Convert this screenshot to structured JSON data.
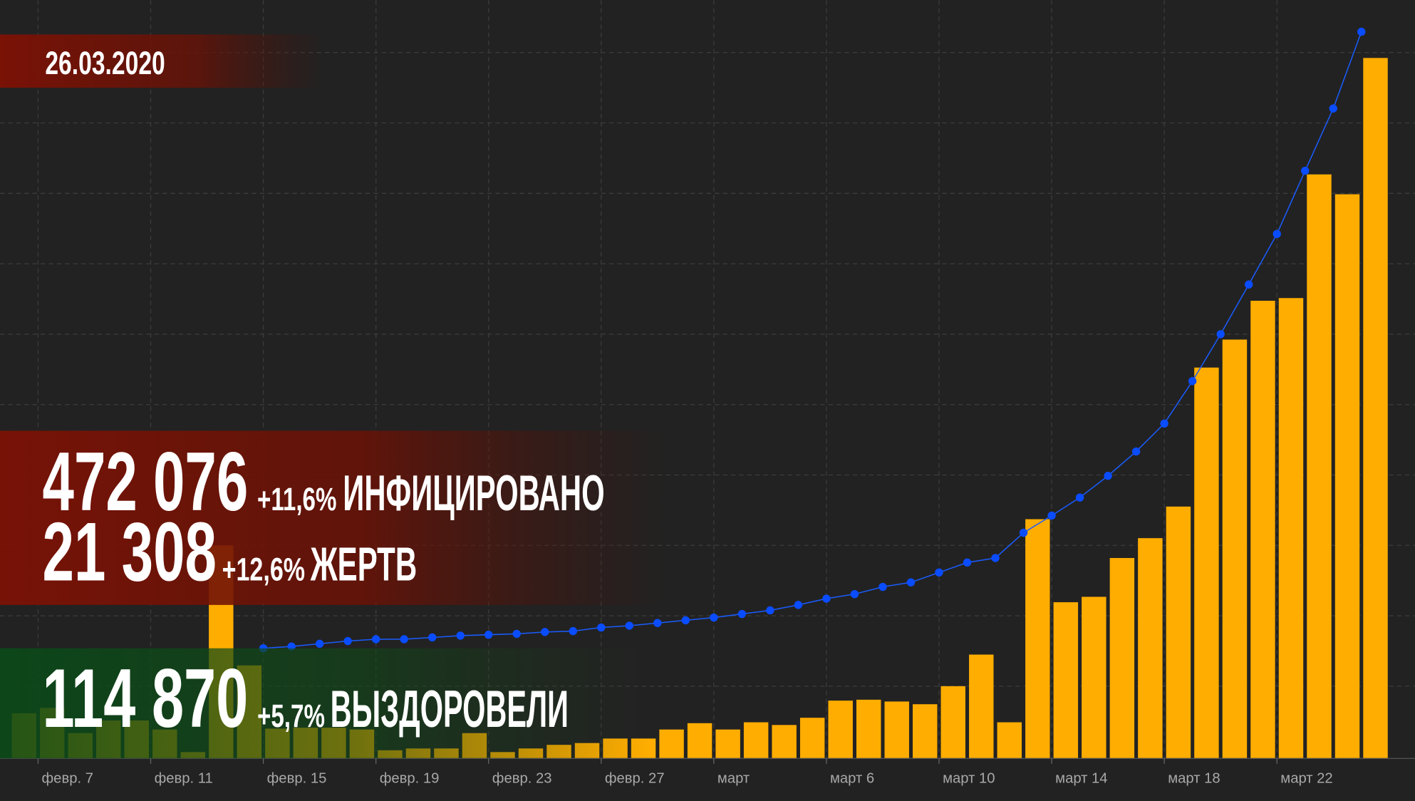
{
  "date": "26.03.2020",
  "stats": [
    {
      "number": "472 076",
      "change": "+11,6%",
      "label": "ИНФИЦИРОВАНО"
    },
    {
      "number": "21 308",
      "change": "+12,6%",
      "label": "ЖЕРТВ"
    },
    {
      "number": "114 870",
      "change": "+5,7%",
      "label": "ВЫЗДОРОВЕЛИ"
    }
  ],
  "chart_data": {
    "type": "bar",
    "categories": [
      null,
      "февр. 7",
      null,
      null,
      null,
      "февр. 11",
      null,
      null,
      null,
      "февр. 15",
      null,
      null,
      null,
      "февр. 19",
      null,
      null,
      null,
      "февр. 23",
      null,
      null,
      null,
      "февр. 27",
      null,
      null,
      null,
      "март",
      null,
      null,
      null,
      "март 6",
      null,
      null,
      null,
      "март 10",
      null,
      null,
      null,
      "март 14",
      null,
      null,
      null,
      "март 18",
      null,
      null,
      null,
      "март 22",
      null,
      null,
      null
    ],
    "series": [
      {
        "type": "bar",
        "color": "#ffad00",
        "values": [
          50,
          56,
          28,
          42,
          42,
          32,
          7,
          236,
          103,
          33,
          34,
          34,
          32,
          9,
          11,
          11,
          28,
          7,
          11,
          15,
          17,
          22,
          22,
          32,
          39,
          32,
          40,
          37,
          45,
          64,
          65,
          63,
          60,
          80,
          115,
          40,
          265,
          173,
          179,
          222,
          244,
          279,
          433,
          464,
          507,
          510,
          647,
          625,
          776
        ]
      },
      {
        "type": "line",
        "color": "#1a5cff",
        "values": [
          null,
          null,
          null,
          null,
          null,
          null,
          null,
          null,
          null,
          122,
          124,
          127,
          130,
          132,
          132,
          134,
          136,
          137,
          138,
          140,
          141,
          145,
          147,
          150,
          153,
          156,
          160,
          164,
          170,
          177,
          182,
          190,
          195,
          206,
          217,
          222,
          250,
          269,
          289,
          313,
          340,
          371,
          418,
          470,
          525,
          581,
          651,
          720,
          805
        ]
      }
    ],
    "ylim": [
      0,
      840
    ],
    "yticks": [
      80,
      158,
      236,
      314,
      392,
      470,
      548,
      626,
      704,
      782
    ],
    "grid": true
  }
}
